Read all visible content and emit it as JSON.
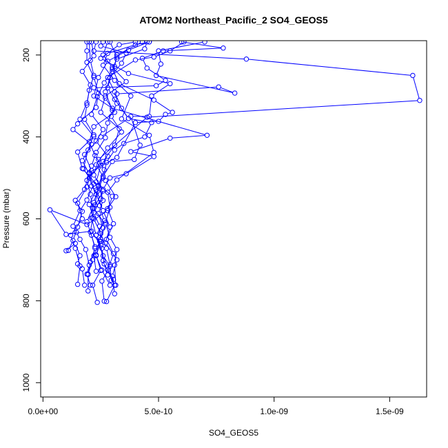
{
  "chart_data": {
    "type": "line",
    "title": "ATOM2 Northeast_Pacific_2 SO4_GEOS5",
    "xlabel": "SO4_GEOS5",
    "ylabel": "Pressure (mbar)",
    "xlim": [
      -1e-11,
      1.66e-09
    ],
    "ylim": [
      1035,
      165
    ],
    "y_axis_inverted": true,
    "grid": false,
    "x_ticks": [
      {
        "value": 0,
        "label": "0.0e+00"
      },
      {
        "value": 5e-10,
        "label": "5.0e-10"
      },
      {
        "value": 1e-09,
        "label": "1.0e-09"
      },
      {
        "value": 1.5e-09,
        "label": "1.5e-09"
      }
    ],
    "y_ticks": [
      {
        "value": 200,
        "label": "200"
      },
      {
        "value": 400,
        "label": "400"
      },
      {
        "value": 600,
        "label": "600"
      },
      {
        "value": 800,
        "label": "800"
      },
      {
        "value": 1000,
        "label": "1000"
      }
    ],
    "series_color": "#0000ff",
    "series": [
      {
        "points": [
          [
            2.65e-10,
            801
          ],
          [
            2.55e-10,
            752
          ],
          [
            2.9e-10,
            716
          ],
          [
            2.6e-10,
            690
          ],
          [
            2.3e-10,
            640
          ],
          [
            2.1e-10,
            598
          ],
          [
            2.2e-10,
            560
          ],
          [
            2.4e-10,
            521
          ],
          [
            1.7e-10,
            477
          ],
          [
            1.5e-10,
            437
          ],
          [
            2.2e-10,
            399
          ],
          [
            1.6e-10,
            357
          ],
          [
            1.9e-10,
            317
          ],
          [
            2.05e-10,
            273
          ],
          [
            1.7e-10,
            240
          ],
          [
            2.2e-10,
            202
          ],
          [
            2.1e-10,
            168
          ]
        ]
      },
      {
        "points": [
          [
            3.1e-10,
            783
          ],
          [
            3e-10,
            740
          ],
          [
            3.2e-10,
            700
          ],
          [
            2.7e-10,
            659
          ],
          [
            2.9e-10,
            620
          ],
          [
            2.6e-10,
            580
          ],
          [
            2.3e-10,
            540
          ],
          [
            2e-10,
            500
          ],
          [
            2.6e-10,
            460
          ],
          [
            3.1e-10,
            420
          ],
          [
            3.3e-10,
            380
          ],
          [
            2.5e-10,
            340
          ],
          [
            2.7e-10,
            300
          ],
          [
            3.6e-10,
            265
          ],
          [
            3e-10,
            230
          ],
          [
            2.6e-10,
            200
          ],
          [
            2.8e-10,
            168
          ]
        ]
      },
      {
        "points": [
          [
            1.5e-10,
            760
          ],
          [
            1.6e-10,
            715
          ],
          [
            1.4e-10,
            672
          ],
          [
            1.2e-10,
            640
          ],
          [
            1.7e-10,
            600
          ],
          [
            1.5e-10,
            562
          ],
          [
            1.9e-10,
            522
          ],
          [
            2.1e-10,
            482
          ],
          [
            1.8e-10,
            443
          ],
          [
            2.5e-10,
            400
          ],
          [
            3.7e-10,
            355
          ],
          [
            3.1e-10,
            308
          ],
          [
            3.2e-10,
            295
          ],
          [
            7.6e-10,
            278
          ],
          [
            8.3e-10,
            293
          ],
          [
            4.9e-10,
            250
          ],
          [
            5.1e-10,
            222
          ],
          [
            5e-10,
            190
          ],
          [
            7e-10,
            168
          ]
        ]
      },
      {
        "points": [
          [
            2.35e-10,
            804
          ],
          [
            2.15e-10,
            762
          ],
          [
            2.5e-10,
            726
          ],
          [
            2.3e-10,
            688
          ],
          [
            2.5e-10,
            650
          ],
          [
            2.7e-10,
            614
          ],
          [
            2.2e-10,
            574
          ],
          [
            2.6e-10,
            532
          ],
          [
            2.2e-10,
            493
          ],
          [
            2.4e-10,
            455
          ],
          [
            4.5e-10,
            352
          ],
          [
            1.63e-09,
            311
          ],
          [
            1.6e-09,
            250
          ],
          [
            8.8e-10,
            210
          ],
          [
            2.2e-10,
            190
          ],
          [
            2.3e-10,
            168
          ]
        ]
      },
      {
        "points": [
          [
            1.8e-10,
            762
          ],
          [
            1.7e-10,
            722
          ],
          [
            1.5e-10,
            710
          ],
          [
            1.6e-10,
            690
          ],
          [
            1.4e-10,
            660
          ],
          [
            1e-10,
            678
          ],
          [
            1.1e-10,
            677
          ],
          [
            1.3e-10,
            653
          ],
          [
            1.5e-10,
            620
          ],
          [
            1.7e-10,
            582
          ],
          [
            1.4e-10,
            555
          ],
          [
            1.8e-10,
            528
          ],
          [
            2e-10,
            490
          ],
          [
            1.7e-10,
            458
          ],
          [
            2.1e-10,
            418
          ],
          [
            1.3e-10,
            382
          ],
          [
            1.5e-10,
            368
          ],
          [
            2.3e-10,
            328
          ],
          [
            2.4e-10,
            293
          ],
          [
            2.2e-10,
            254
          ],
          [
            1.9e-10,
            218
          ],
          [
            1.9e-10,
            190
          ],
          [
            1.9e-10,
            168
          ]
        ]
      },
      {
        "points": [
          [
            2.75e-10,
            802
          ],
          [
            3.1e-10,
            762
          ],
          [
            2.8e-10,
            725
          ],
          [
            3.05e-10,
            685
          ],
          [
            2.75e-10,
            650
          ],
          [
            3.05e-10,
            612
          ],
          [
            2.8e-10,
            575
          ],
          [
            3.15e-10,
            546
          ],
          [
            2.7e-10,
            506
          ],
          [
            2.3e-10,
            468
          ],
          [
            2.8e-10,
            427
          ],
          [
            3.4e-10,
            388
          ],
          [
            2.95e-10,
            350
          ],
          [
            3.2e-10,
            318
          ],
          [
            2.8e-10,
            280
          ],
          [
            3e-10,
            240
          ],
          [
            3.2e-10,
            205
          ],
          [
            2.9e-10,
            168
          ]
        ]
      },
      {
        "points": [
          [
            2.05e-10,
            762
          ],
          [
            1.9e-10,
            735
          ],
          [
            2e-10,
            713
          ],
          [
            1.85e-10,
            675
          ],
          [
            1.6e-10,
            650
          ],
          [
            1.45e-10,
            633
          ],
          [
            1.3e-10,
            618
          ],
          [
            1.6e-10,
            580
          ],
          [
            1.9e-10,
            554
          ],
          [
            2.2e-10,
            515
          ],
          [
            1.75e-10,
            478
          ],
          [
            1.95e-10,
            432
          ],
          [
            2.2e-10,
            395
          ],
          [
            1.8e-10,
            357
          ],
          [
            1.9e-10,
            322
          ],
          [
            2e-10,
            286
          ],
          [
            2.2e-10,
            250
          ],
          [
            2.05e-10,
            213
          ],
          [
            2e-10,
            168
          ]
        ]
      },
      {
        "points": [
          [
            2.8e-10,
            737
          ],
          [
            2.6e-10,
            702
          ],
          [
            2.5e-10,
            665
          ],
          [
            2.1e-10,
            630
          ],
          [
            1e-10,
            638
          ],
          [
            3e-11,
            578
          ],
          [
            1.9e-10,
            614
          ],
          [
            2.8e-10,
            580
          ],
          [
            3e-10,
            545
          ],
          [
            2.3e-10,
            510
          ],
          [
            2.5e-10,
            470
          ],
          [
            2.8e-10,
            447
          ],
          [
            2.3e-10,
            410
          ],
          [
            2.6e-10,
            382
          ],
          [
            2.1e-10,
            345
          ],
          [
            2.35e-10,
            302
          ],
          [
            2.65e-10,
            268
          ],
          [
            3.1e-10,
            228
          ],
          [
            3.2e-10,
            200
          ],
          [
            4.3e-10,
            168
          ]
        ]
      },
      {
        "points": [
          [
            3.05e-10,
            748
          ],
          [
            2.65e-10,
            710
          ],
          [
            2.55e-10,
            672
          ],
          [
            2.3e-10,
            640
          ],
          [
            2.65e-10,
            605
          ],
          [
            2.45e-10,
            568
          ],
          [
            2.6e-10,
            528
          ],
          [
            2.9e-10,
            500
          ],
          [
            3.6e-10,
            490
          ],
          [
            4.8e-10,
            448
          ],
          [
            3.8e-10,
            436
          ],
          [
            5.5e-10,
            403
          ],
          [
            7.1e-10,
            396
          ],
          [
            3e-10,
            330
          ],
          [
            2.2e-10,
            300
          ],
          [
            2.4e-10,
            255
          ],
          [
            2.8e-10,
            215
          ],
          [
            3.7e-10,
            188
          ],
          [
            4.6e-10,
            168
          ]
        ]
      },
      {
        "points": [
          [
            2.9e-10,
            762
          ],
          [
            2.55e-10,
            725
          ],
          [
            2.3e-10,
            690
          ],
          [
            2.5e-10,
            655
          ],
          [
            2.45e-10,
            618
          ],
          [
            2.2e-10,
            585
          ],
          [
            2.5e-10,
            551
          ],
          [
            2.1e-10,
            520
          ],
          [
            2e-10,
            487
          ],
          [
            3.2e-10,
            450
          ],
          [
            4e-10,
            365
          ],
          [
            5e-10,
            362
          ],
          [
            5.3e-10,
            345
          ],
          [
            5.6e-10,
            340
          ],
          [
            4.8e-10,
            310
          ],
          [
            3.3e-10,
            270
          ],
          [
            3e-10,
            234
          ],
          [
            3.2e-10,
            210
          ],
          [
            4.4e-10,
            185
          ],
          [
            4.5e-10,
            168
          ]
        ]
      },
      {
        "points": [
          [
            3.15e-10,
            762
          ],
          [
            3.1e-10,
            713
          ],
          [
            3.2e-10,
            675
          ],
          [
            2.9e-10,
            645
          ],
          [
            2.7e-10,
            610
          ],
          [
            2.9e-10,
            572
          ],
          [
            2.8e-10,
            535
          ],
          [
            3.2e-10,
            505
          ],
          [
            4.8e-10,
            438
          ],
          [
            4.6e-10,
            396
          ],
          [
            3.4e-10,
            356
          ],
          [
            3.8e-10,
            300
          ],
          [
            3.1e-10,
            262
          ],
          [
            2.6e-10,
            225
          ],
          [
            2.8e-10,
            196
          ],
          [
            4e-10,
            175
          ],
          [
            4.6e-10,
            168
          ]
        ]
      },
      {
        "points": [
          [
            2.95e-10,
            750
          ],
          [
            2.9e-10,
            712
          ],
          [
            2.75e-10,
            672
          ],
          [
            2.5e-10,
            636
          ],
          [
            2.2e-10,
            600
          ],
          [
            2e-10,
            565
          ],
          [
            2.3e-10,
            530
          ],
          [
            2.6e-10,
            496
          ],
          [
            3e-10,
            460
          ],
          [
            3.95e-10,
            455
          ],
          [
            4.2e-10,
            420
          ],
          [
            3.8e-10,
            350
          ],
          [
            4.6e-10,
            350
          ],
          [
            4.7e-10,
            300
          ],
          [
            5.5e-10,
            270
          ],
          [
            3.7e-10,
            245
          ],
          [
            2.5e-10,
            208
          ],
          [
            3.3e-10,
            175
          ],
          [
            4e-10,
            168
          ]
        ]
      },
      {
        "points": [
          [
            2.3e-10,
            728
          ],
          [
            2.2e-10,
            690
          ],
          [
            2.45e-10,
            655
          ],
          [
            2.6e-10,
            622
          ],
          [
            2.4e-10,
            587
          ],
          [
            2.6e-10,
            555
          ],
          [
            2.4e-10,
            518
          ],
          [
            2.65e-10,
            480
          ],
          [
            2.25e-10,
            445
          ],
          [
            2e-10,
            412
          ],
          [
            2.2e-10,
            375
          ],
          [
            3.1e-10,
            340
          ],
          [
            2.7e-10,
            305
          ],
          [
            2.2e-10,
            280
          ],
          [
            4.9e-10,
            275
          ],
          [
            5.3e-10,
            262
          ],
          [
            4.5e-10,
            232
          ],
          [
            4.3e-10,
            208
          ],
          [
            5.2e-10,
            190
          ],
          [
            7.8e-10,
            183
          ],
          [
            6e-10,
            168
          ]
        ]
      },
      {
        "points": [
          [
            1.95e-10,
            736
          ],
          [
            2.05e-10,
            706
          ],
          [
            2.25e-10,
            672
          ],
          [
            2.1e-10,
            640
          ],
          [
            1.9e-10,
            607
          ],
          [
            2.15e-10,
            574
          ],
          [
            2.05e-10,
            540
          ],
          [
            1.9e-10,
            506
          ],
          [
            2.1e-10,
            471
          ],
          [
            2.3e-10,
            438
          ],
          [
            2.7e-10,
            402
          ],
          [
            2.8e-10,
            366
          ],
          [
            3e-10,
            335
          ],
          [
            2.7e-10,
            290
          ],
          [
            2.9e-10,
            255
          ],
          [
            3.4e-10,
            220
          ],
          [
            3.6e-10,
            195
          ],
          [
            2.5e-10,
            178
          ],
          [
            2.6e-10,
            168
          ]
        ]
      },
      {
        "points": [
          [
            1.95e-10,
            776
          ],
          [
            1.95e-10,
            735
          ],
          [
            2.15e-10,
            700
          ],
          [
            2.25e-10,
            668
          ],
          [
            2.05e-10,
            632
          ],
          [
            2.15e-10,
            598
          ],
          [
            2.25e-10,
            566
          ],
          [
            2.35e-10,
            533
          ],
          [
            2.6e-10,
            500
          ],
          [
            2.75e-10,
            462
          ],
          [
            3.1e-10,
            432
          ],
          [
            3.5e-10,
            416
          ],
          [
            4.4e-10,
            400
          ],
          [
            4.7e-10,
            365
          ],
          [
            3.7e-10,
            355
          ],
          [
            3.4e-10,
            330
          ],
          [
            3.1e-10,
            290
          ],
          [
            2.8e-10,
            255
          ],
          [
            4e-10,
            212
          ],
          [
            4.8e-10,
            205
          ],
          [
            5.5e-10,
            190
          ],
          [
            6.1e-10,
            168
          ]
        ]
      }
    ]
  }
}
